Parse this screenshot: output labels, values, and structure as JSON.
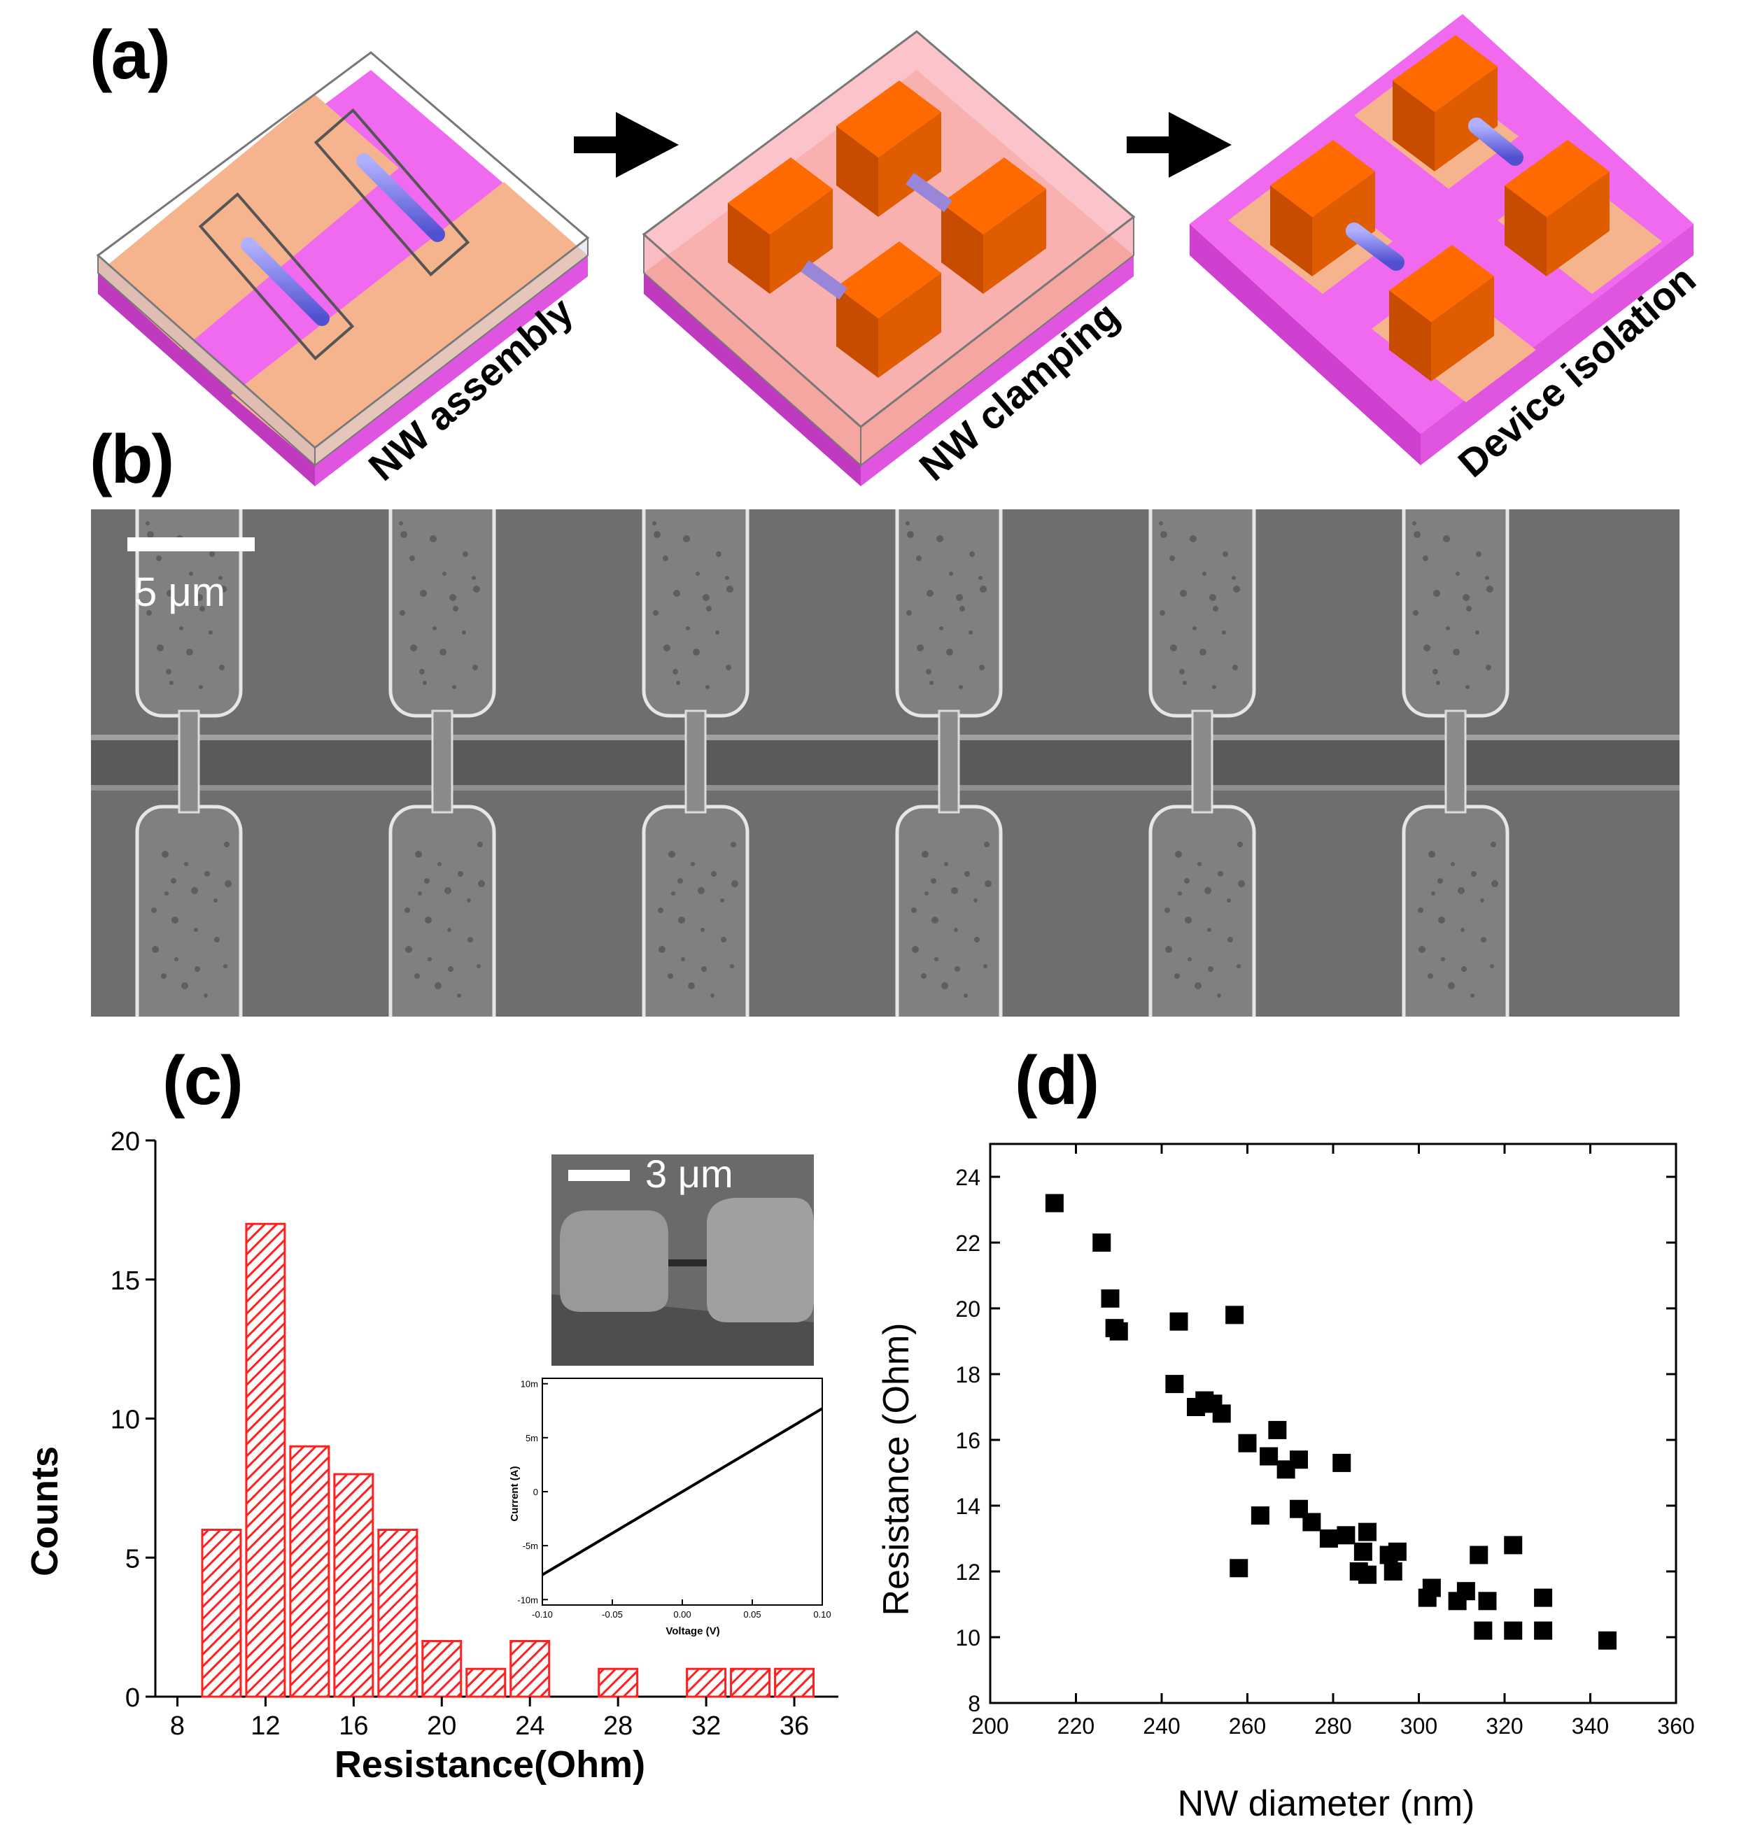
{
  "panels": {
    "a": {
      "label": "(a)",
      "steps": [
        {
          "caption": "NW assembly"
        },
        {
          "caption": "NW clamping"
        },
        {
          "caption": "Device isolation"
        }
      ]
    },
    "b": {
      "label": "(b)",
      "scale_bar": "5 μm",
      "device_count": 6
    },
    "c": {
      "label": "(c)",
      "inset_scale_bar": "3 μm",
      "inset_iv": {
        "xlabel": "Voltage (V)",
        "ylabel": "Current (A)",
        "xticks": [
          "-0.10",
          "-0.05",
          "0.00",
          "0.05",
          "0.10"
        ],
        "yticks": [
          "10m",
          "5m",
          "0",
          "-5m",
          "-10m"
        ]
      }
    },
    "d": {
      "label": "(d)"
    }
  },
  "colors": {
    "magenta": "#f06af0",
    "peach": "#f5b48e",
    "orange": "#ff6a00",
    "nanowire": "#8080f0",
    "bar_red": "#ff2020",
    "sem_bg": "#6e6e6e"
  },
  "chart_data": [
    {
      "id": "c",
      "type": "bar",
      "title": "",
      "xlabel": "Resistance(Ohm)",
      "ylabel": "Counts",
      "xlim": [
        7,
        38
      ],
      "ylim": [
        0,
        20
      ],
      "xticks": [
        "8",
        "12",
        "16",
        "20",
        "24",
        "28",
        "32",
        "36"
      ],
      "yticks": [
        "0",
        "5",
        "10",
        "15",
        "20"
      ],
      "bin_width": 2,
      "categories": [
        10,
        12,
        14,
        16,
        18,
        20,
        22,
        24,
        28,
        32,
        34,
        36
      ],
      "values": [
        6,
        17,
        9,
        8,
        6,
        2,
        1,
        2,
        1,
        1,
        1,
        1
      ]
    },
    {
      "id": "c-inset",
      "type": "line",
      "xlabel": "Voltage (V)",
      "ylabel": "Current (A)",
      "xlim": [
        -0.1,
        0.1
      ],
      "ylim": [
        -0.0105,
        0.0105
      ],
      "x": [
        -0.1,
        0.1
      ],
      "y": [
        -0.0077,
        0.0077
      ]
    },
    {
      "id": "d",
      "type": "scatter",
      "xlabel": "NW diameter (nm)",
      "ylabel": "Resistance (Ohm)",
      "xlim": [
        200,
        360
      ],
      "ylim": [
        8,
        25
      ],
      "xticks": [
        "200",
        "220",
        "240",
        "260",
        "280",
        "300",
        "320",
        "340",
        "360"
      ],
      "yticks": [
        "8",
        "10",
        "12",
        "14",
        "16",
        "18",
        "20",
        "22",
        "24"
      ],
      "x": [
        215,
        226,
        228,
        229,
        230,
        243,
        244,
        248,
        250,
        252,
        254,
        257,
        258,
        260,
        263,
        265,
        267,
        269,
        272,
        272,
        275,
        279,
        282,
        283,
        286,
        287,
        288,
        288,
        293,
        294,
        295,
        302,
        303,
        309,
        311,
        314,
        315,
        316,
        322,
        322,
        329,
        329,
        344
      ],
      "y": [
        23.2,
        22.0,
        20.3,
        19.4,
        19.3,
        17.7,
        19.6,
        17.0,
        17.2,
        17.1,
        16.8,
        19.8,
        12.1,
        15.9,
        13.7,
        15.5,
        16.3,
        15.1,
        15.4,
        13.9,
        13.5,
        13.0,
        15.3,
        13.1,
        12.0,
        12.6,
        13.2,
        11.9,
        12.5,
        12.0,
        12.6,
        11.2,
        11.5,
        11.1,
        11.4,
        12.5,
        10.2,
        11.1,
        12.8,
        10.2,
        11.2,
        10.2,
        9.9
      ]
    }
  ]
}
